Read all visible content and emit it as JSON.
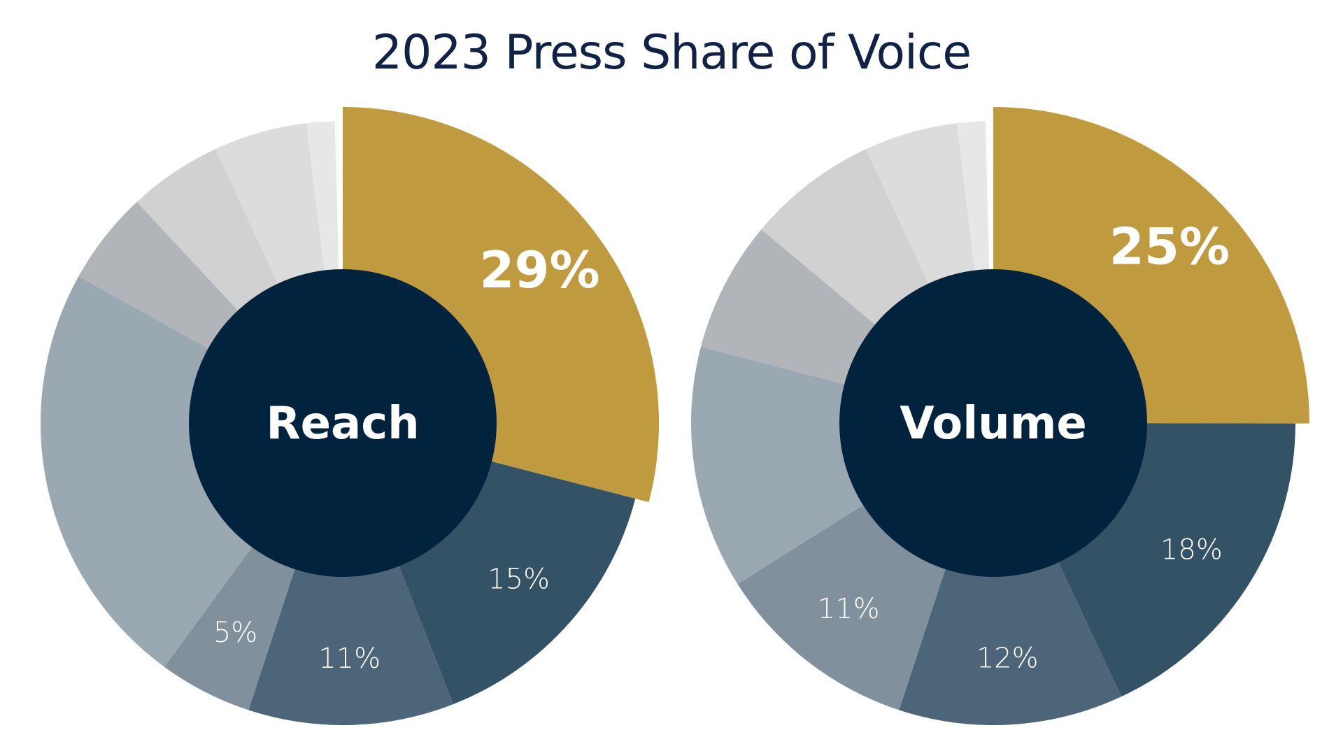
{
  "chart_data": {
    "title": "2023 Press Share of Voice",
    "type": "pie",
    "colors": {
      "highlight": "#C09A3E",
      "center": "#02233D"
    },
    "charts": [
      {
        "name": "Reach",
        "slices": [
          {
            "value": 29,
            "label": "29%",
            "color": "#C09A3E",
            "highlight": true
          },
          {
            "value": 15,
            "label": "15%",
            "color": "#335266"
          },
          {
            "value": 11,
            "label": "11%",
            "color": "#4D6578"
          },
          {
            "value": 5,
            "label": "5%",
            "color": "#80909D"
          },
          {
            "value": 23,
            "label": "",
            "color": "#9AA8B2"
          },
          {
            "value": 5,
            "label": "",
            "color": "#B1B5B9"
          },
          {
            "value": 5,
            "label": "",
            "color": "#D1D1D1"
          },
          {
            "value": 5,
            "label": "",
            "color": "#DCDCDC"
          },
          {
            "value": 1.5,
            "label": "",
            "color": "#E7E7E7"
          }
        ]
      },
      {
        "name": "Volume",
        "slices": [
          {
            "value": 25,
            "label": "25%",
            "color": "#C09A3E",
            "highlight": true
          },
          {
            "value": 18,
            "label": "18%",
            "color": "#335266"
          },
          {
            "value": 12,
            "label": "12%",
            "color": "#4D6578"
          },
          {
            "value": 11,
            "label": "11%",
            "color": "#80909D"
          },
          {
            "value": 13,
            "label": "",
            "color": "#9AA8B2"
          },
          {
            "value": 7,
            "label": "",
            "color": "#B1B5B9"
          },
          {
            "value": 7,
            "label": "",
            "color": "#D1D1D1"
          },
          {
            "value": 5,
            "label": "",
            "color": "#DCDCDC"
          },
          {
            "value": 1.5,
            "label": "",
            "color": "#E7E7E7"
          }
        ]
      }
    ]
  }
}
